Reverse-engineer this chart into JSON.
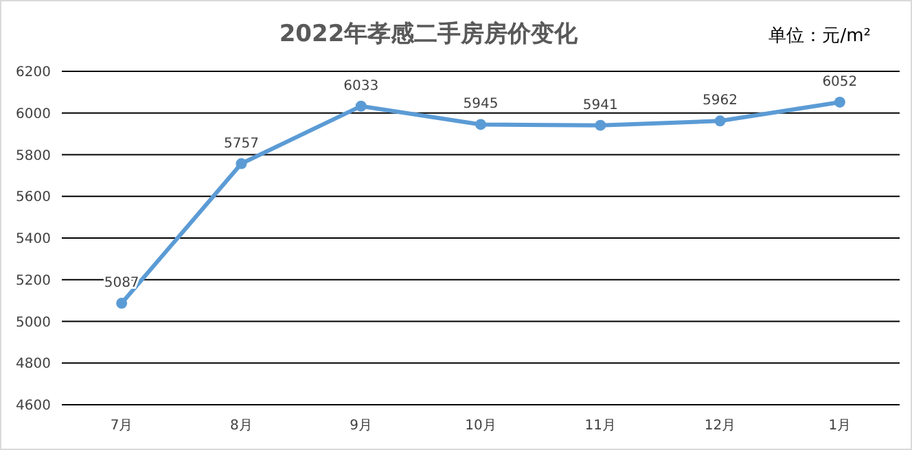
{
  "chart_data": {
    "type": "line",
    "title": "2022年孝感二手房房价变化",
    "annotations": [
      "单位：元/m²"
    ],
    "categories": [
      "7月",
      "8月",
      "9月",
      "10月",
      "11月",
      "12月",
      "1月"
    ],
    "series": [
      {
        "color": "#5b9bd5",
        "values": [
          5087,
          5757,
          6033,
          5945,
          5941,
          5962,
          6052
        ]
      }
    ],
    "ylim": [
      4600,
      6200
    ],
    "yticks": [
      4600,
      4800,
      5000,
      5200,
      5400,
      5600,
      5800,
      6000,
      6200
    ],
    "grid": "y",
    "marker": "circle",
    "line_style": "solid",
    "data_labels": true
  }
}
